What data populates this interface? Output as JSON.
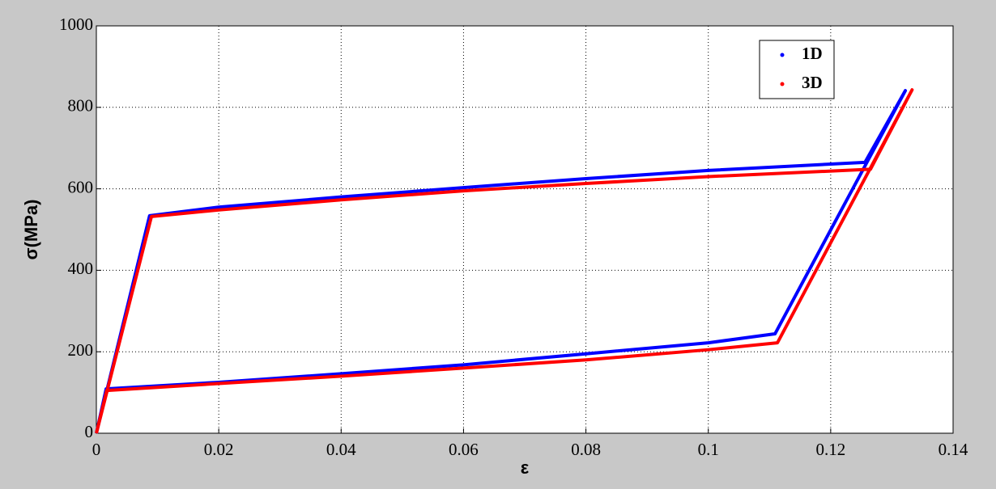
{
  "chart_data": {
    "type": "line",
    "xlabel": "ε",
    "ylabel": "σ(MPa)",
    "xlim": [
      0,
      0.14
    ],
    "ylim": [
      0,
      1000
    ],
    "xticks": [
      0,
      0.02,
      0.04,
      0.06,
      0.08,
      0.1,
      0.12,
      0.14
    ],
    "yticks": [
      0,
      200,
      400,
      600,
      800,
      1000
    ],
    "grid": true,
    "legend": "upper right",
    "series": [
      {
        "name": "1D",
        "color": "#0000ff",
        "x": [
          0,
          0.0087,
          0.02,
          0.04,
          0.06,
          0.08,
          0.1,
          0.1256,
          0.1322,
          0.1109,
          0.1,
          0.08,
          0.06,
          0.04,
          0.02,
          0.0016,
          0
        ],
        "values": [
          0,
          534,
          555,
          580,
          603,
          625,
          645,
          665,
          841,
          244,
          222,
          195,
          168,
          146,
          125,
          109,
          0
        ]
      },
      {
        "name": "3D",
        "color": "#ff0000",
        "x": [
          0,
          0.009,
          0.02,
          0.04,
          0.06,
          0.08,
          0.1,
          0.1265,
          0.1333,
          0.1113,
          0.1,
          0.08,
          0.06,
          0.04,
          0.02,
          0.0017,
          0
        ],
        "values": [
          0,
          532,
          548,
          573,
          595,
          613,
          630,
          648,
          843,
          222,
          205,
          180,
          160,
          140,
          122,
          105,
          0
        ]
      }
    ]
  }
}
